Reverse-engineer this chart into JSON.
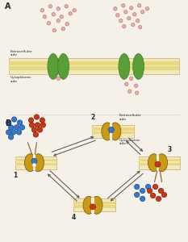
{
  "bg_color": "#f5f0e8",
  "membrane_outer_color": "#f0e8c0",
  "membrane_inner_color": "#e8d880",
  "membrane_edge_color": "#c8b060",
  "channel_color": "#5a9e38",
  "channel_edge": "#3a7a20",
  "pump_color": "#c89a18",
  "pump_edge": "#806010",
  "pink_face": "#e8b0b0",
  "pink_edge": "#c07878",
  "blue_face": "#3878c8",
  "blue_edge": "#1a4a90",
  "red_face": "#c83818",
  "red_edge": "#802000",
  "white_face": "#ffffff",
  "stem_color": "#806030",
  "arrow_color": "#505050",
  "text_color": "#282828",
  "panel_a_label": "A",
  "panel_b_label": "B",
  "label_1": "1",
  "label_2": "2",
  "label_3": "3",
  "label_4": "4",
  "ext_label": "Extracellular\nside",
  "cyto_label": "Cytoplasmic\nside",
  "ext_label2": "Extracellular\nside",
  "cyto_label2": "Cytoplasmic\nside"
}
